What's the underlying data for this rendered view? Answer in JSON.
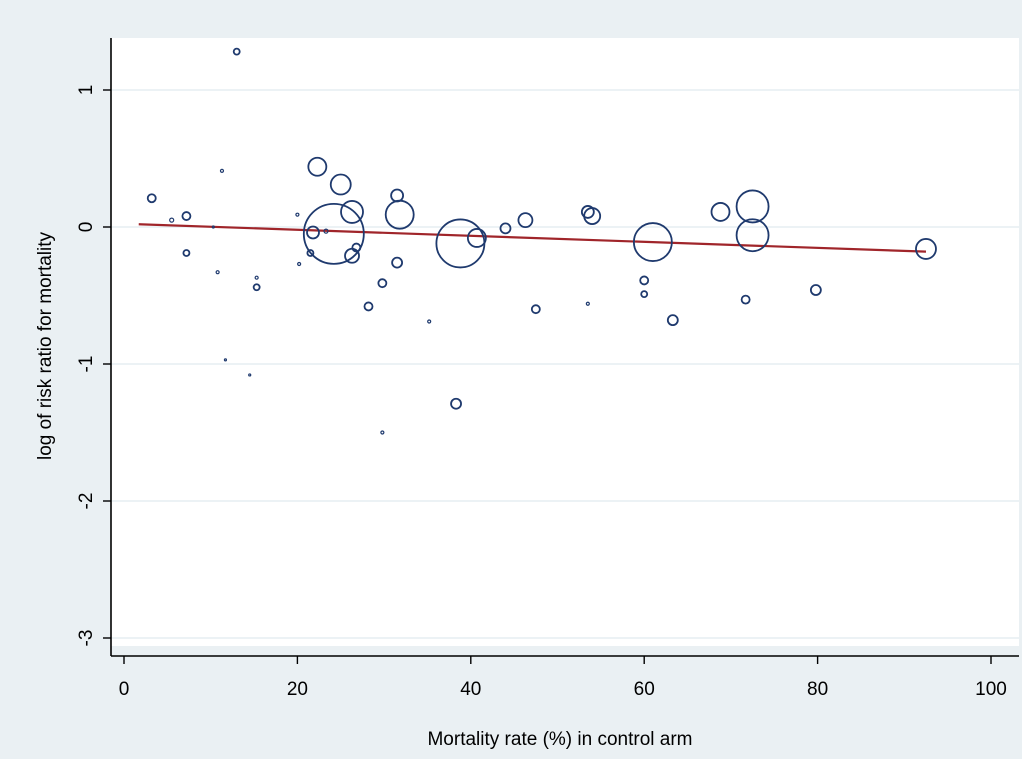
{
  "colors": {
    "outer_background": "#eaf0f3",
    "plot_background": "#ffffff",
    "gridline": "#e6eef2",
    "marker": "#1f3a6e",
    "fit_line": "#a0252a"
  },
  "chart_data": {
    "type": "scatter",
    "title": "",
    "xlabel": "Mortality rate (%) in control arm",
    "ylabel": "log of risk ratio for mortality",
    "xlim": [
      0,
      100
    ],
    "ylim": [
      -3,
      1.4
    ],
    "x_ticks": [
      0,
      20,
      40,
      60,
      80,
      100
    ],
    "y_ticks": [
      1,
      0,
      -1,
      -2,
      -3
    ],
    "grid": "horizontal",
    "legend": "none",
    "marker_style": "hollow circles sized by study weight",
    "points": [
      {
        "x": 3.2,
        "y": 0.21,
        "size": 4
      },
      {
        "x": 5.5,
        "y": 0.05,
        "size": 2
      },
      {
        "x": 7.2,
        "y": 0.08,
        "size": 4
      },
      {
        "x": 7.2,
        "y": -0.19,
        "size": 3
      },
      {
        "x": 10.3,
        "y": 0.0,
        "size": 1
      },
      {
        "x": 10.8,
        "y": -0.33,
        "size": 1.5
      },
      {
        "x": 11.3,
        "y": 0.41,
        "size": 1.5
      },
      {
        "x": 11.7,
        "y": -0.97,
        "size": 1
      },
      {
        "x": 13.0,
        "y": 1.28,
        "size": 3
      },
      {
        "x": 14.5,
        "y": -1.08,
        "size": 1
      },
      {
        "x": 15.3,
        "y": -0.37,
        "size": 1.5
      },
      {
        "x": 15.3,
        "y": -0.44,
        "size": 3
      },
      {
        "x": 20.0,
        "y": 0.09,
        "size": 1.5
      },
      {
        "x": 20.2,
        "y": -0.27,
        "size": 1.5
      },
      {
        "x": 21.5,
        "y": -0.19,
        "size": 3
      },
      {
        "x": 21.8,
        "y": -0.04,
        "size": 6
      },
      {
        "x": 22.3,
        "y": 0.44,
        "size": 9
      },
      {
        "x": 23.3,
        "y": -0.03,
        "size": 2
      },
      {
        "x": 24.2,
        "y": -0.05,
        "size": 30
      },
      {
        "x": 25.0,
        "y": 0.31,
        "size": 10
      },
      {
        "x": 26.3,
        "y": 0.11,
        "size": 11
      },
      {
        "x": 26.3,
        "y": -0.21,
        "size": 7
      },
      {
        "x": 26.8,
        "y": -0.15,
        "size": 4
      },
      {
        "x": 28.2,
        "y": -0.58,
        "size": 4
      },
      {
        "x": 29.8,
        "y": -0.41,
        "size": 4
      },
      {
        "x": 29.8,
        "y": -1.5,
        "size": 1.5
      },
      {
        "x": 31.5,
        "y": 0.23,
        "size": 6
      },
      {
        "x": 31.5,
        "y": -0.26,
        "size": 5
      },
      {
        "x": 31.8,
        "y": 0.09,
        "size": 14
      },
      {
        "x": 35.2,
        "y": -0.69,
        "size": 1.5
      },
      {
        "x": 38.3,
        "y": -1.29,
        "size": 5
      },
      {
        "x": 38.8,
        "y": -0.12,
        "size": 24
      },
      {
        "x": 40.7,
        "y": -0.08,
        "size": 9
      },
      {
        "x": 44.0,
        "y": -0.01,
        "size": 5
      },
      {
        "x": 46.3,
        "y": 0.05,
        "size": 7
      },
      {
        "x": 47.5,
        "y": -0.6,
        "size": 4
      },
      {
        "x": 53.5,
        "y": 0.11,
        "size": 6
      },
      {
        "x": 53.5,
        "y": -0.56,
        "size": 1.5
      },
      {
        "x": 54.0,
        "y": 0.08,
        "size": 8
      },
      {
        "x": 60.0,
        "y": -0.39,
        "size": 4
      },
      {
        "x": 60.0,
        "y": -0.49,
        "size": 3
      },
      {
        "x": 61.0,
        "y": -0.11,
        "size": 19
      },
      {
        "x": 63.3,
        "y": -0.68,
        "size": 5
      },
      {
        "x": 68.8,
        "y": 0.11,
        "size": 9
      },
      {
        "x": 71.7,
        "y": -0.53,
        "size": 4
      },
      {
        "x": 72.5,
        "y": 0.15,
        "size": 16
      },
      {
        "x": 72.5,
        "y": -0.06,
        "size": 16
      },
      {
        "x": 79.8,
        "y": -0.46,
        "size": 5
      },
      {
        "x": 92.5,
        "y": -0.16,
        "size": 10
      }
    ],
    "fit_line": {
      "x": [
        1.7,
        92.5
      ],
      "y": [
        0.02,
        -0.18
      ]
    }
  }
}
